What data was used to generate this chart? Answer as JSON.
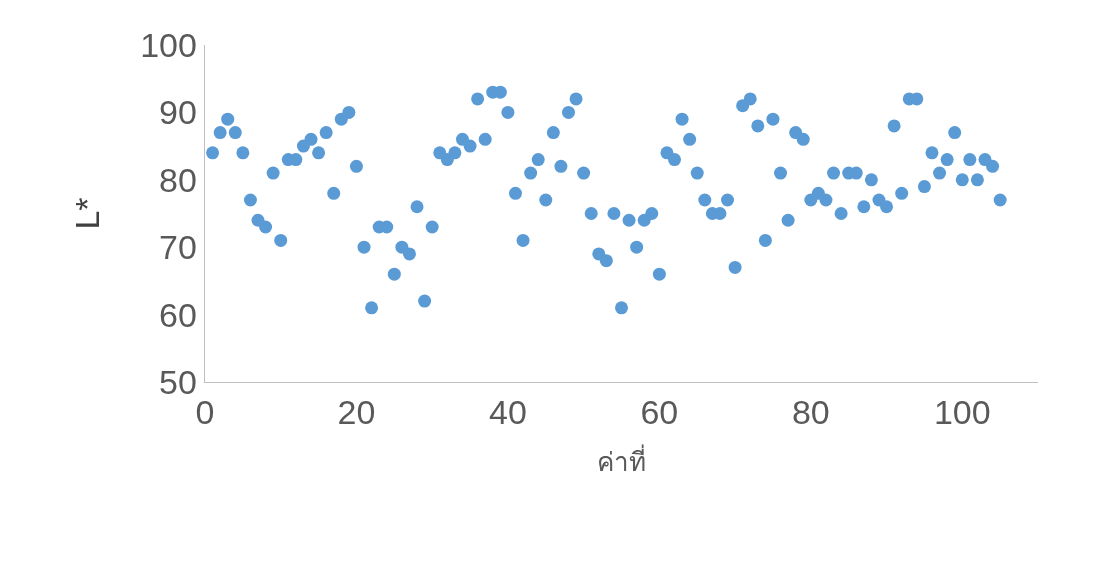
{
  "chart_data": {
    "type": "scatter",
    "xlabel": "ค่าที่",
    "ylabel": "L*",
    "x": [
      1,
      2,
      3,
      4,
      5,
      6,
      7,
      8,
      9,
      10,
      11,
      12,
      13,
      14,
      15,
      16,
      17,
      18,
      19,
      20,
      21,
      22,
      23,
      24,
      25,
      26,
      27,
      28,
      29,
      30,
      31,
      32,
      33,
      34,
      35,
      36,
      37,
      38,
      39,
      40,
      41,
      42,
      43,
      44,
      45,
      46,
      47,
      48,
      49,
      50,
      51,
      52,
      53,
      54,
      55,
      56,
      57,
      58,
      59,
      60,
      61,
      62,
      63,
      64,
      65,
      66,
      67,
      68,
      69,
      70,
      71,
      72,
      73,
      74,
      75,
      76,
      77,
      78,
      79,
      80,
      81,
      82,
      83,
      84,
      85,
      86,
      87,
      88,
      89,
      90,
      91,
      92,
      93,
      94,
      95,
      96,
      97,
      98,
      99,
      100,
      101,
      102,
      103,
      104,
      105
    ],
    "series": [
      {
        "color": "#5b9bd5",
        "values": [
          84,
          87,
          89,
          87,
          84,
          77,
          74,
          73,
          81,
          71,
          83,
          83,
          85,
          86,
          84,
          87,
          78,
          89,
          90,
          82,
          70,
          61,
          73,
          73,
          66,
          70,
          69,
          76,
          62,
          73,
          84,
          83,
          84,
          86,
          85,
          92,
          86,
          93,
          93,
          90,
          78,
          71,
          81,
          83,
          77,
          87,
          82,
          90,
          92,
          81,
          75,
          69,
          68,
          75,
          61,
          74,
          70,
          74,
          75,
          66,
          84,
          83,
          89,
          86,
          81,
          77,
          75,
          75,
          77,
          67,
          91,
          92,
          88,
          71,
          89,
          81,
          74,
          87,
          86,
          77,
          78,
          77,
          81,
          75,
          81,
          81,
          76,
          80,
          77,
          76,
          88,
          78,
          92,
          92,
          79,
          84,
          81,
          83,
          87,
          80,
          83,
          80,
          83,
          82,
          77
        ]
      }
    ],
    "xlim": [
      0,
      110
    ],
    "xticks": [
      0,
      20,
      40,
      60,
      80,
      100
    ],
    "ylim": [
      50,
      100
    ],
    "yticks": [
      50,
      60,
      70,
      80,
      90,
      100
    ],
    "grid": false,
    "marker": "circle"
  }
}
